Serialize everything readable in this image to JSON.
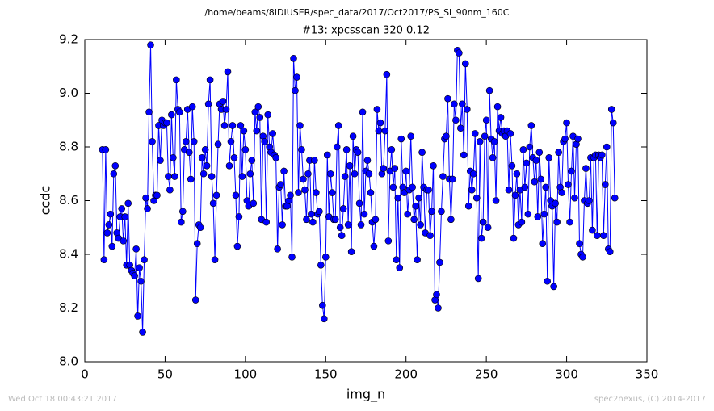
{
  "chart_data": {
    "type": "line",
    "suptitle": "/home/beams/8IDIUSER/spec_data/2017/Oct2017/PS_Si_90nm_160C",
    "title": "#13: xpcsscan 320 0.12",
    "x_label": "img_n",
    "y_label": "ccdc",
    "footer_left": "Wed Oct 18 00:43:21 2017",
    "footer_right": "spec2nexus, (C) 2014-2017",
    "color": "#0000ff",
    "xlim": [
      0,
      350
    ],
    "xticks": [
      0,
      50,
      100,
      150,
      200,
      250,
      300,
      350
    ],
    "ylim": [
      8.0,
      9.2
    ],
    "yticks": [
      {
        "value": 8.0,
        "label": "8.0"
      },
      8.2,
      8.4,
      8.6,
      8.8,
      {
        "value": 9.0,
        "label": "9.0"
      },
      9.2
    ],
    "x": [
      11,
      12,
      13,
      14,
      15,
      16,
      17,
      18,
      19,
      20,
      21,
      22,
      23,
      24,
      25,
      26,
      27,
      28,
      29,
      30,
      31,
      32,
      33,
      34,
      35,
      36,
      37,
      38,
      39,
      40,
      41,
      42,
      43,
      44,
      45,
      46,
      47,
      48,
      49,
      50,
      51,
      52,
      53,
      54,
      55,
      56,
      57,
      58,
      59,
      60,
      61,
      62,
      63,
      64,
      65,
      66,
      67,
      68,
      69,
      70,
      71,
      72,
      73,
      74,
      75,
      76,
      77,
      78,
      79,
      80,
      81,
      82,
      83,
      84,
      85,
      86,
      87,
      88,
      89,
      90,
      91,
      92,
      93,
      94,
      95,
      96,
      97,
      98,
      99,
      100,
      101,
      102,
      103,
      104,
      105,
      106,
      107,
      108,
      109,
      110,
      111,
      112,
      113,
      114,
      115,
      116,
      117,
      118,
      119,
      120,
      121,
      122,
      123,
      124,
      125,
      126,
      127,
      128,
      129,
      130,
      131,
      132,
      133,
      134,
      135,
      136,
      137,
      138,
      139,
      140,
      141,
      142,
      143,
      144,
      145,
      146,
      147,
      148,
      149,
      150,
      151,
      152,
      153,
      154,
      155,
      156,
      157,
      158,
      159,
      160,
      161,
      162,
      163,
      164,
      165,
      166,
      167,
      168,
      169,
      170,
      171,
      172,
      173,
      174,
      175,
      176,
      177,
      178,
      179,
      180,
      181,
      182,
      183,
      184,
      185,
      186,
      187,
      188,
      189,
      190,
      191,
      192,
      193,
      194,
      195,
      196,
      197,
      198,
      199,
      200,
      201,
      202,
      203,
      204,
      205,
      206,
      207,
      208,
      209,
      210,
      211,
      212,
      213,
      214,
      215,
      216,
      217,
      218,
      219,
      220,
      221,
      222,
      223,
      224,
      225,
      226,
      227,
      228,
      229,
      230,
      231,
      232,
      233,
      234,
      235,
      236,
      237,
      238,
      239,
      240,
      241,
      242,
      243,
      244,
      245,
      246,
      247,
      248,
      249,
      250,
      251,
      252,
      253,
      254,
      255,
      256,
      257,
      258,
      259,
      260,
      261,
      262,
      263,
      264,
      265,
      266,
      267,
      268,
      269,
      270,
      271,
      272,
      273,
      274,
      275,
      276,
      277,
      278,
      279,
      280,
      281,
      282,
      283,
      284,
      285,
      286,
      287,
      288,
      289,
      290,
      291,
      292,
      293,
      294,
      295,
      296,
      297,
      298,
      299,
      300,
      301,
      302,
      303,
      304,
      305,
      306,
      307,
      308,
      309,
      310,
      311,
      312,
      313,
      314,
      315,
      316,
      317,
      318,
      319,
      320,
      321,
      322,
      323,
      324,
      325,
      326,
      327,
      328,
      329,
      330
    ],
    "values": [
      8.79,
      8.38,
      8.79,
      8.48,
      8.51,
      8.55,
      8.43,
      8.7,
      8.73,
      8.48,
      8.46,
      8.54,
      8.57,
      8.45,
      8.54,
      8.36,
      8.59,
      8.36,
      8.34,
      8.33,
      8.32,
      8.42,
      8.17,
      8.35,
      8.3,
      8.11,
      8.38,
      8.61,
      8.57,
      8.93,
      9.18,
      8.82,
      8.6,
      8.62,
      8.62,
      8.88,
      8.75,
      8.9,
      8.88,
      8.89,
      8.89,
      8.69,
      8.64,
      8.92,
      8.76,
      8.69,
      9.05,
      8.94,
      8.93,
      8.52,
      8.56,
      8.79,
      8.82,
      8.94,
      8.78,
      8.68,
      8.95,
      8.82,
      8.23,
      8.44,
      8.51,
      8.5,
      8.76,
      8.7,
      8.79,
      8.73,
      8.96,
      9.05,
      8.69,
      8.59,
      8.38,
      8.62,
      8.81,
      8.96,
      8.94,
      8.97,
      8.88,
      8.94,
      9.08,
      8.73,
      8.82,
      8.88,
      8.76,
      8.62,
      8.43,
      8.54,
      8.88,
      8.69,
      8.86,
      8.79,
      8.6,
      8.58,
      8.7,
      8.75,
      8.59,
      8.93,
      8.86,
      8.95,
      8.91,
      8.53,
      8.84,
      8.82,
      8.52,
      8.92,
      8.8,
      8.78,
      8.85,
      8.77,
      8.76,
      8.42,
      8.65,
      8.66,
      8.51,
      8.71,
      8.58,
      8.58,
      8.6,
      8.62,
      8.39,
      9.13,
      9.01,
      9.06,
      8.63,
      8.88,
      8.79,
      8.68,
      8.64,
      8.53,
      8.7,
      8.75,
      8.55,
      8.52,
      8.75,
      8.63,
      8.55,
      8.56,
      8.36,
      8.21,
      8.16,
      8.39,
      8.77,
      8.54,
      8.7,
      8.63,
      8.53,
      8.53,
      8.8,
      8.88,
      8.5,
      8.47,
      8.57,
      8.69,
      8.79,
      8.51,
      8.73,
      8.41,
      8.84,
      8.7,
      8.79,
      8.78,
      8.59,
      8.51,
      8.93,
      8.55,
      8.71,
      8.75,
      8.7,
      8.63,
      8.52,
      8.43,
      8.53,
      8.94,
      8.86,
      8.89,
      8.7,
      8.72,
      8.86,
      9.07,
      8.45,
      8.71,
      8.79,
      8.65,
      8.72,
      8.38,
      8.61,
      8.35,
      8.83,
      8.65,
      8.63,
      8.71,
      8.55,
      8.64,
      8.84,
      8.65,
      8.53,
      8.58,
      8.38,
      8.61,
      8.51,
      8.78,
      8.65,
      8.48,
      8.64,
      8.64,
      8.47,
      8.56,
      8.73,
      8.23,
      8.25,
      8.2,
      8.37,
      8.56,
      8.69,
      8.83,
      8.84,
      8.98,
      8.68,
      8.53,
      8.68,
      8.96,
      8.9,
      9.16,
      9.15,
      8.87,
      8.96,
      8.77,
      9.11,
      8.94,
      8.58,
      8.71,
      8.64,
      8.7,
      8.85,
      8.61,
      8.31,
      8.82,
      8.46,
      8.52,
      8.84,
      8.9,
      8.5,
      9.01,
      8.83,
      8.76,
      8.82,
      8.6,
      8.95,
      8.86,
      8.91,
      8.85,
      8.86,
      8.84,
      8.86,
      8.64,
      8.85,
      8.73,
      8.46,
      8.62,
      8.7,
      8.51,
      8.64,
      8.52,
      8.79,
      8.65,
      8.74,
      8.55,
      8.8,
      8.88,
      8.76,
      8.67,
      8.75,
      8.54,
      8.78,
      8.68,
      8.44,
      8.55,
      8.65,
      8.3,
      8.76,
      8.6,
      8.58,
      8.28,
      8.59,
      8.52,
      8.78,
      8.65,
      8.63,
      8.82,
      8.83,
      8.89,
      8.66,
      8.52,
      8.71,
      8.84,
      8.61,
      8.81,
      8.83,
      8.44,
      8.4,
      8.39,
      8.6,
      8.72,
      8.59,
      8.6,
      8.76,
      8.49,
      8.76,
      8.77,
      8.47,
      8.77,
      8.76,
      8.77,
      8.47,
      8.66,
      8.8,
      8.42,
      8.41,
      8.94,
      8.89,
      8.61
    ]
  }
}
